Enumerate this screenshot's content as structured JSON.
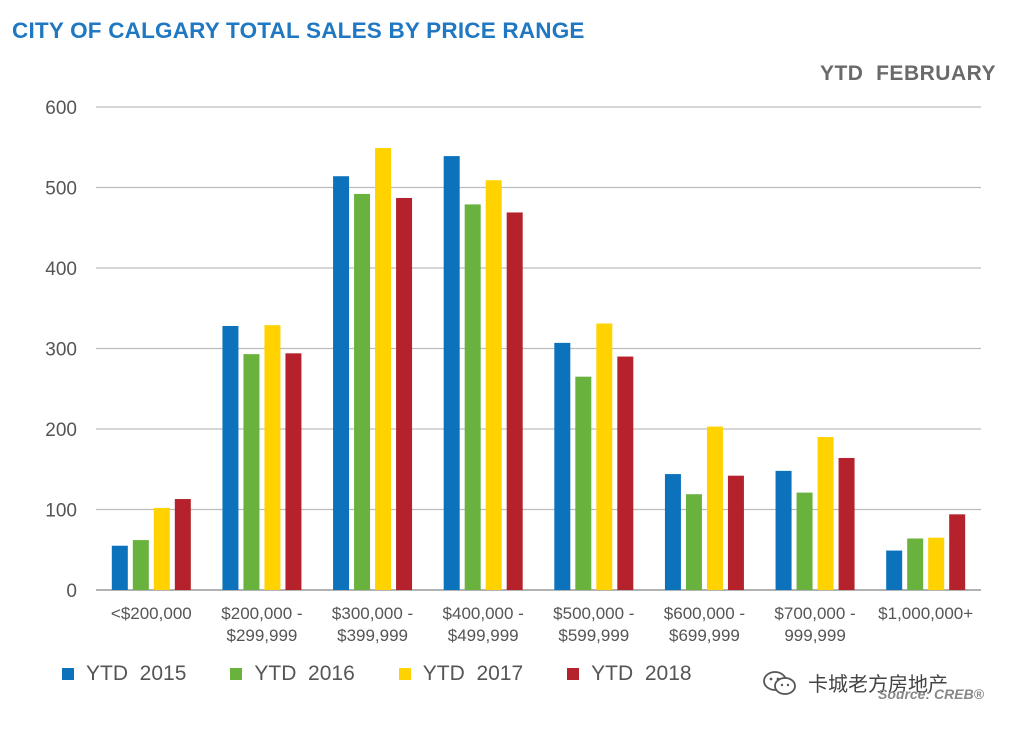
{
  "chart_data": {
    "type": "bar",
    "title": "CITY OF CALGARY TOTAL SALES BY PRICE RANGE",
    "subtitle": "YTD  FEBRUARY",
    "xlabel": "",
    "ylabel": "",
    "ylim": [
      0,
      600
    ],
    "yticks": [
      0,
      100,
      200,
      300,
      400,
      500,
      600
    ],
    "grid": true,
    "legend_position": "bottom-left",
    "categories": [
      [
        "<$200,000"
      ],
      [
        "$200,000 -",
        "$299,999"
      ],
      [
        "$300,000 -",
        "$399,999"
      ],
      [
        "$400,000 -",
        "$499,999"
      ],
      [
        "$500,000 -",
        "$599,999"
      ],
      [
        "$600,000 -",
        "$699,999"
      ],
      [
        "$700,000 -",
        "999,999"
      ],
      [
        "$1,000,000+"
      ]
    ],
    "series": [
      {
        "name": "YTD  2015",
        "color": "#0b72bb",
        "values": [
          55,
          328,
          514,
          539,
          307,
          144,
          148,
          49
        ]
      },
      {
        "name": "YTD  2016",
        "color": "#6ab23e",
        "values": [
          62,
          293,
          492,
          479,
          265,
          119,
          121,
          64
        ]
      },
      {
        "name": "YTD  2017",
        "color": "#ffd200",
        "values": [
          102,
          329,
          549,
          509,
          331,
          203,
          190,
          65
        ]
      },
      {
        "name": "YTD  2018",
        "color": "#b5222b",
        "values": [
          113,
          294,
          487,
          469,
          290,
          142,
          164,
          94
        ]
      }
    ]
  },
  "watermark": {
    "text": "卡城老方房地产"
  },
  "source": "Source: CREB®"
}
